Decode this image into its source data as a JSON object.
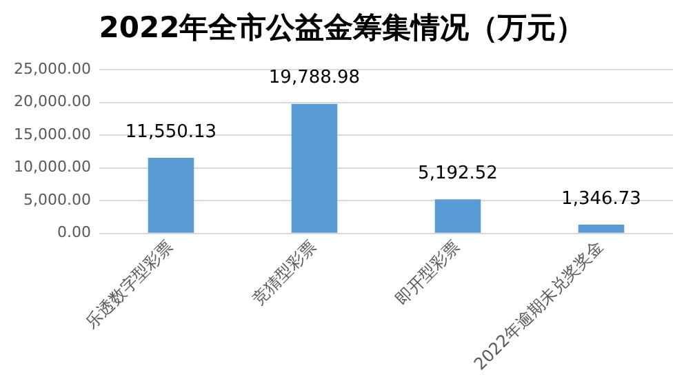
{
  "chart_data": {
    "type": "bar",
    "title": "2022年全市公益金筹集情况（万元）",
    "categories": [
      "乐透数字型彩票",
      "竞猜型彩票",
      "即开型彩票",
      "2022年逾期未兑奖奖金"
    ],
    "values": [
      11550.13,
      19788.98,
      5192.52,
      1346.73
    ],
    "value_labels": [
      "11,550.13",
      "19,788.98",
      "5,192.52",
      "1,346.73"
    ],
    "color": "#5b9bd5",
    "ylim": [
      0,
      25000
    ],
    "yticks": [
      {
        "value": 0,
        "label": "0.00"
      },
      {
        "value": 5000,
        "label": "5,000.00"
      },
      {
        "value": 10000,
        "label": "10,000.00"
      },
      {
        "value": 15000,
        "label": "15,000.00"
      },
      {
        "value": 20000,
        "label": "20,000.00"
      },
      {
        "value": 25000,
        "label": "25,000.00"
      }
    ],
    "grid": "y",
    "legend": false
  }
}
